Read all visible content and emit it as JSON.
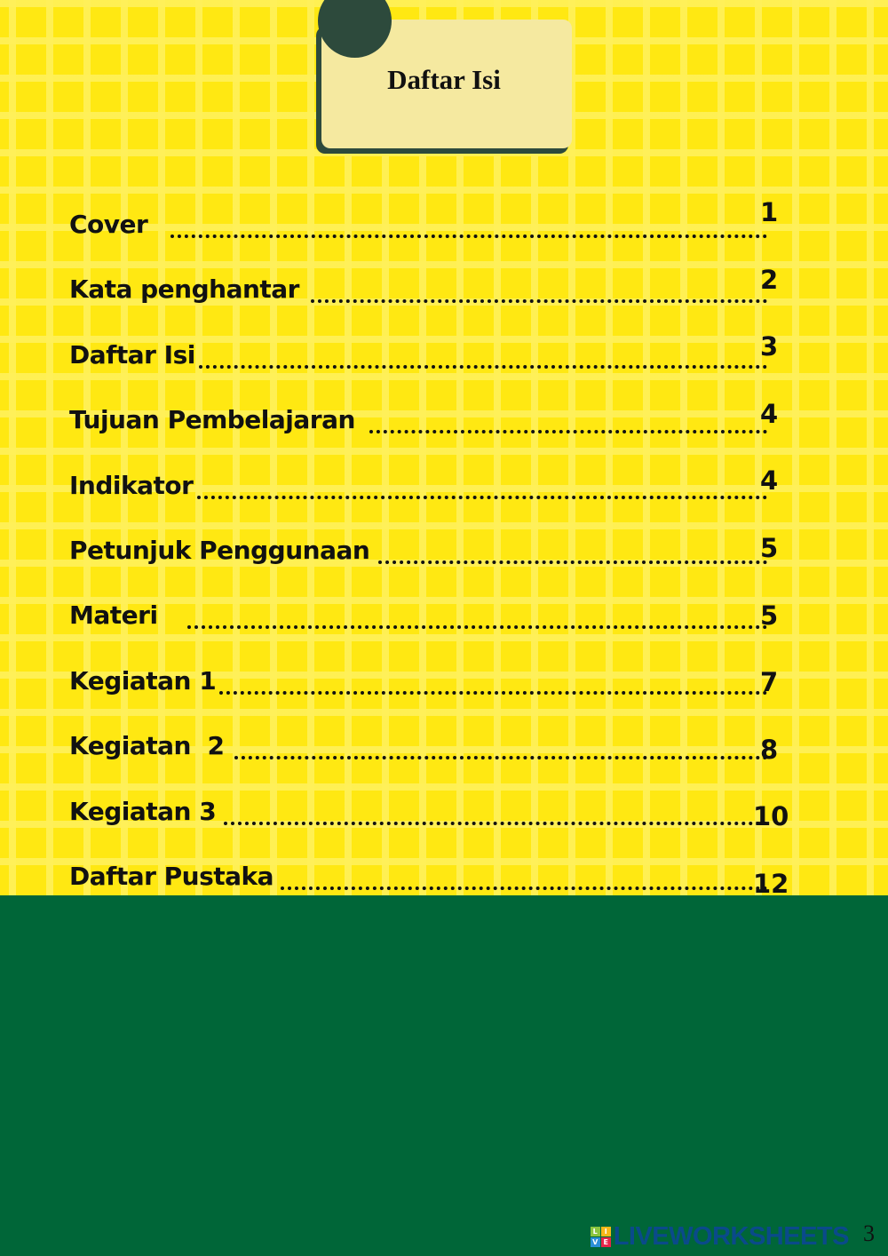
{
  "header": {
    "title": "Daftar Isi"
  },
  "toc": [
    {
      "label": "Cover",
      "page": "1"
    },
    {
      "label": "Kata penghantar",
      "page": "2"
    },
    {
      "label": "Daftar Isi",
      "page": "3"
    },
    {
      "label": "Tujuan Pembelajaran",
      "page": "4"
    },
    {
      "label": "Indikator",
      "page": "4"
    },
    {
      "label": "Petunjuk Penggunaan",
      "page": "5"
    },
    {
      "label": "Materi",
      "page": "5"
    },
    {
      "label": "Kegiatan 1",
      "page": "7"
    },
    {
      "label": "Kegiatan  2",
      "page": "8"
    },
    {
      "label": "Kegiatan 3",
      "page": "10"
    },
    {
      "label": "Daftar Pustaka",
      "page": "12"
    }
  ],
  "footer": {
    "watermark": "LIVEWORKSHEETS",
    "watermark_tiles": [
      "L",
      "I",
      "V",
      "E"
    ],
    "page_number": "3"
  },
  "colors": {
    "background": "#ffe812",
    "footer": "#006638",
    "card": "#f5e9a0",
    "accent": "#2d4a3c"
  }
}
